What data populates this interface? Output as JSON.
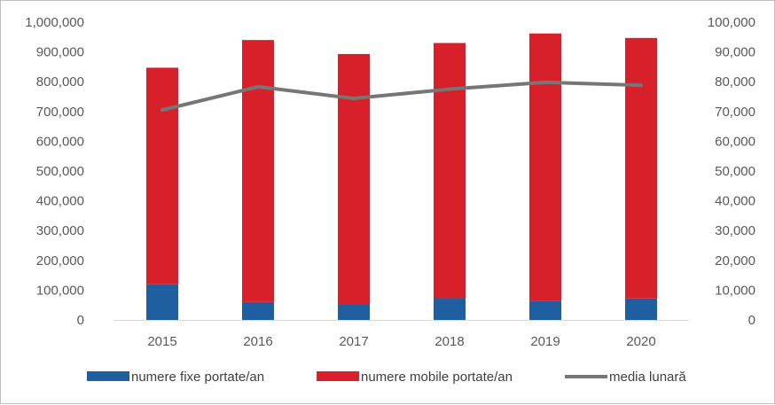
{
  "chart_data": {
    "type": "bar",
    "stacked": true,
    "categories": [
      "2015",
      "2016",
      "2017",
      "2018",
      "2019",
      "2020"
    ],
    "series": [
      {
        "name": "numere fixe portate/an",
        "kind": "bar",
        "axis": "left",
        "color": "#1f5fa0",
        "values": [
          120000,
          60000,
          52000,
          73000,
          65000,
          72000
        ]
      },
      {
        "name": "numere mobile portate/an",
        "kind": "bar",
        "axis": "left",
        "color": "#d7202a",
        "values": [
          727000,
          880000,
          841000,
          857000,
          897000,
          875000
        ]
      },
      {
        "name": "media lunară",
        "kind": "line",
        "axis": "right",
        "color": "#767676",
        "values": [
          70500,
          78300,
          74400,
          77500,
          79800,
          78800
        ]
      }
    ],
    "left_axis": {
      "ylim": [
        0,
        1000000
      ],
      "ticks": [
        "0",
        "100,000",
        "200,000",
        "300,000",
        "400,000",
        "500,000",
        "600,000",
        "700,000",
        "800,000",
        "900,000",
        "1,000,000"
      ]
    },
    "right_axis": {
      "ylim": [
        0,
        100000
      ],
      "ticks": [
        "0",
        "10,000",
        "20,000",
        "30,000",
        "40,000",
        "50,000",
        "60,000",
        "70,000",
        "80,000",
        "90,000",
        "100,000"
      ]
    },
    "title": "",
    "xlabel": "",
    "ylabel": "",
    "grid": false,
    "legend_position": "bottom"
  }
}
